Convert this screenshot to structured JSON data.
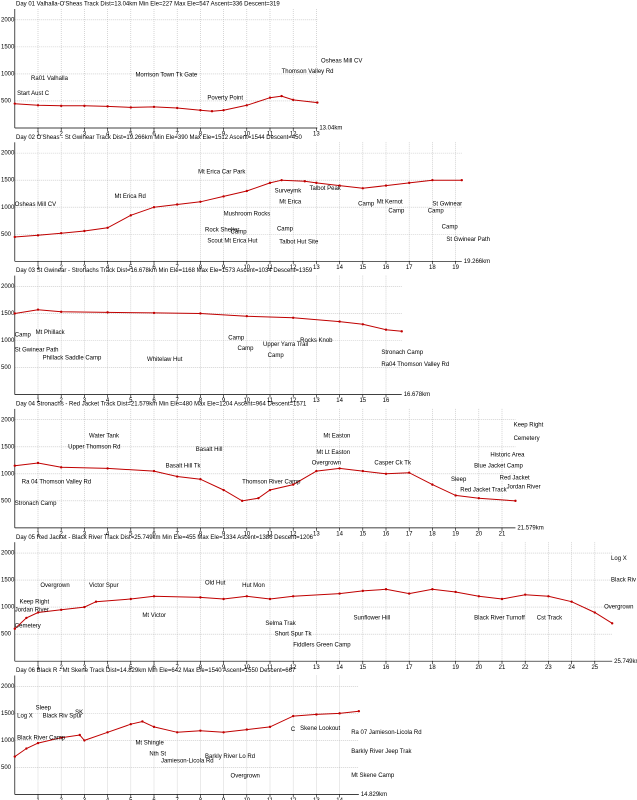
{
  "chart_data": [
    {
      "type": "line",
      "title": "Day 01 Valhalla-O'Sheas Track   Dist=13.04km   Min Ele=227   Max Ele=547   Ascent=336   Descent=319",
      "distance_label": "13.04km",
      "color": "#c00000",
      "grid": true,
      "xlim": [
        0,
        13.04
      ],
      "ylim": [
        0,
        2200
      ],
      "xticks": [
        1,
        2,
        3,
        4,
        5,
        6,
        7,
        8,
        9,
        10,
        11,
        12,
        13
      ],
      "yticks": [
        500,
        1000,
        1500,
        2000
      ],
      "x": [
        0,
        1,
        2,
        3,
        4,
        5,
        6,
        7,
        8,
        8.5,
        9,
        10,
        11,
        11.5,
        12,
        13.04
      ],
      "values": [
        450,
        420,
        410,
        410,
        400,
        380,
        390,
        370,
        330,
        310,
        330,
        420,
        560,
        590,
        520,
        470
      ],
      "annotations": [
        {
          "text": "Start Aust C",
          "x": 0.1,
          "y": 640
        },
        {
          "text": "Ra01 Valhalla",
          "x": 0.7,
          "y": 920
        },
        {
          "text": "Morrison Town Tk Gate",
          "x": 5.2,
          "y": 980
        },
        {
          "text": "Poverty Point",
          "x": 8.3,
          "y": 560
        },
        {
          "text": "Thomson Valley Rd",
          "x": 11.5,
          "y": 1050
        },
        {
          "text": "Osheas Mill CV",
          "x": 13.2,
          "y": 1240
        }
      ]
    },
    {
      "type": "line",
      "title": "Day 02 O'Sheas - St Gwinear Track   Dist=19.266km   Min Ele=390   Max Ele=1512   Ascent=1544   Descent=450",
      "distance_label": "19.266km",
      "color": "#c00000",
      "grid": true,
      "xlim": [
        0,
        19.266
      ],
      "ylim": [
        0,
        2200
      ],
      "xticks": [
        1,
        2,
        3,
        4,
        5,
        6,
        7,
        8,
        9,
        10,
        11,
        12,
        13,
        14,
        15,
        16,
        17,
        18,
        19
      ],
      "yticks": [
        500,
        1000,
        1500,
        2000
      ],
      "x": [
        0,
        1,
        2,
        3,
        4,
        5,
        6,
        7,
        8,
        9,
        10,
        11,
        11.5,
        12.5,
        13,
        14,
        15,
        16,
        17,
        18,
        19.266
      ],
      "values": [
        450,
        480,
        520,
        560,
        620,
        850,
        1000,
        1050,
        1100,
        1200,
        1300,
        1450,
        1500,
        1480,
        1450,
        1400,
        1350,
        1400,
        1450,
        1500,
        1500
      ],
      "annotations": [
        {
          "text": "Osheas Mill CV",
          "x": 0,
          "y": 1050
        },
        {
          "text": "Mt Erica Rd",
          "x": 4.3,
          "y": 1200
        },
        {
          "text": "Mt Erica Car Park",
          "x": 7.9,
          "y": 1650
        },
        {
          "text": "Mushroom Rocks",
          "x": 9.0,
          "y": 880
        },
        {
          "text": "Rock Shelter",
          "x": 8.2,
          "y": 580
        },
        {
          "text": "Camp",
          "x": 9.3,
          "y": 540
        },
        {
          "text": "Scout Mt Erica Hut",
          "x": 8.3,
          "y": 380
        },
        {
          "text": "Surveymk",
          "x": 11.2,
          "y": 1300
        },
        {
          "text": "Mt Erica",
          "x": 11.4,
          "y": 1100
        },
        {
          "text": "Camp",
          "x": 11.3,
          "y": 600
        },
        {
          "text": "Talbot Hut Site",
          "x": 11.4,
          "y": 360
        },
        {
          "text": "Talbot Peak",
          "x": 12.7,
          "y": 1350
        },
        {
          "text": "Camp",
          "x": 14.8,
          "y": 1060
        },
        {
          "text": "Mt Kernot",
          "x": 15.6,
          "y": 1100
        },
        {
          "text": "Camp",
          "x": 16.1,
          "y": 930
        },
        {
          "text": "Camp",
          "x": 17.8,
          "y": 930
        },
        {
          "text": "St Gwinear",
          "x": 18,
          "y": 1060
        },
        {
          "text": "Camp",
          "x": 18.4,
          "y": 640
        },
        {
          "text": "St Gwinear Path",
          "x": 18.6,
          "y": 400
        }
      ]
    },
    {
      "type": "line",
      "title": "Day 03 St Gwinear - Stronachs Track   Dist=16.678km   Min Ele=1168   Max Ele=1573   Ascent=1034   Descent=1359",
      "distance_label": "16.678km",
      "color": "#c00000",
      "grid": true,
      "xlim": [
        0,
        16.678
      ],
      "ylim": [
        0,
        2200
      ],
      "xticks": [
        1,
        2,
        3,
        4,
        5,
        6,
        7,
        8,
        9,
        10,
        11,
        12,
        13,
        14,
        15,
        16
      ],
      "yticks": [
        500,
        1000,
        1500,
        2000
      ],
      "x": [
        0,
        1,
        2,
        4,
        6,
        8,
        10,
        12,
        14,
        15,
        16,
        16.678
      ],
      "values": [
        1500,
        1570,
        1530,
        1520,
        1510,
        1500,
        1450,
        1420,
        1350,
        1300,
        1200,
        1170
      ],
      "annotations": [
        {
          "text": "Camp",
          "x": 0,
          "y": 1100
        },
        {
          "text": "Mt Phillack",
          "x": 0.9,
          "y": 1150
        },
        {
          "text": "St Gwinear Path",
          "x": 0,
          "y": 830
        },
        {
          "text": "Phillack Saddle Camp",
          "x": 1.2,
          "y": 680
        },
        {
          "text": "Whitelaw Hut",
          "x": 5.7,
          "y": 650
        },
        {
          "text": "Camp",
          "x": 9.2,
          "y": 1050
        },
        {
          "text": "Camp",
          "x": 9.6,
          "y": 850
        },
        {
          "text": "Upper Yarra Trail",
          "x": 10.7,
          "y": 930
        },
        {
          "text": "Camp",
          "x": 10.9,
          "y": 720
        },
        {
          "text": "Rocks Knob",
          "x": 12.3,
          "y": 1000
        },
        {
          "text": "Stronach Camp",
          "x": 15.8,
          "y": 780
        },
        {
          "text": "Ra04 Thomson Valley Rd",
          "x": 15.8,
          "y": 560
        }
      ]
    },
    {
      "type": "line",
      "title": "Day 04 Stronachs - Red Jacket Track   Dist=21.579km   Min Ele=480   Max Ele=1204   Ascent=964   Descent=1571",
      "distance_label": "21.579km",
      "color": "#c00000",
      "grid": true,
      "xlim": [
        0,
        21.579
      ],
      "ylim": [
        0,
        2200
      ],
      "xticks": [
        1,
        2,
        3,
        4,
        5,
        6,
        7,
        8,
        9,
        10,
        11,
        12,
        13,
        14,
        15,
        16,
        17,
        18,
        19,
        20,
        21
      ],
      "yticks": [
        500,
        1000,
        1500,
        2000
      ],
      "x": [
        0,
        1,
        2,
        4,
        6,
        7,
        8,
        9,
        9.8,
        10.5,
        11,
        12,
        13,
        14,
        15,
        16,
        17,
        18,
        19,
        20,
        21.579
      ],
      "values": [
        1150,
        1200,
        1120,
        1100,
        1050,
        950,
        900,
        700,
        500,
        550,
        700,
        800,
        1050,
        1100,
        1050,
        1000,
        1020,
        800,
        600,
        550,
        500
      ],
      "annotations": [
        {
          "text": "Ra 04 Thomson Valley Rd",
          "x": 0.3,
          "y": 850
        },
        {
          "text": "Stronach Camp",
          "x": 0,
          "y": 450
        },
        {
          "text": "Upper Thomson Rd",
          "x": 2.3,
          "y": 1500
        },
        {
          "text": "Water Tank",
          "x": 3.2,
          "y": 1700
        },
        {
          "text": "Basalt Hill Tk",
          "x": 6.5,
          "y": 1150
        },
        {
          "text": "Basalt Hill",
          "x": 7.8,
          "y": 1450
        },
        {
          "text": "Thomson River Camp",
          "x": 9.8,
          "y": 850
        },
        {
          "text": "Mt Easton",
          "x": 13.3,
          "y": 1700
        },
        {
          "text": "Mt Lt Easton",
          "x": 13,
          "y": 1400
        },
        {
          "text": "Overgrown",
          "x": 12.8,
          "y": 1200
        },
        {
          "text": "Casper Ck Tk",
          "x": 15.5,
          "y": 1200
        },
        {
          "text": "Sleep",
          "x": 18.8,
          "y": 900
        },
        {
          "text": "Blue Jacket Camp",
          "x": 19.8,
          "y": 1150
        },
        {
          "text": "Historic Area",
          "x": 20.5,
          "y": 1350
        },
        {
          "text": "Keep Right",
          "x": 21.5,
          "y": 1900
        },
        {
          "text": "Cemetery",
          "x": 21.5,
          "y": 1650
        },
        {
          "text": "Red Jacket Track",
          "x": 19.2,
          "y": 700
        },
        {
          "text": "Red Jacket",
          "x": 20.9,
          "y": 920
        },
        {
          "text": "Jordan River",
          "x": 21.2,
          "y": 760
        }
      ]
    },
    {
      "type": "line",
      "title": "Day 05 Red Jacket - Black River Track   Dist=25.749km   Min Ele=455   Max Ele=1334   Ascent=1386   Descent=1206",
      "distance_label": "25.749km",
      "color": "#c00000",
      "grid": true,
      "xlim": [
        0,
        25.749
      ],
      "ylim": [
        0,
        2200
      ],
      "xticks": [
        1,
        2,
        3,
        4,
        5,
        6,
        7,
        8,
        9,
        10,
        11,
        12,
        13,
        14,
        15,
        16,
        17,
        18,
        19,
        20,
        21,
        22,
        23,
        24,
        25
      ],
      "yticks": [
        500,
        1000,
        1500,
        2000
      ],
      "x": [
        0,
        0.5,
        1,
        2,
        3,
        3.5,
        5,
        6,
        8,
        9,
        10,
        11,
        12,
        14,
        15,
        16,
        17,
        18,
        19,
        20,
        21,
        22,
        23,
        24,
        25,
        25.749
      ],
      "values": [
        600,
        800,
        900,
        950,
        1000,
        1100,
        1150,
        1200,
        1180,
        1150,
        1200,
        1150,
        1200,
        1250,
        1300,
        1330,
        1250,
        1330,
        1280,
        1200,
        1150,
        1230,
        1200,
        1100,
        900,
        700
      ],
      "annotations": [
        {
          "text": "Keep Right",
          "x": 0.2,
          "y": 1100
        },
        {
          "text": "Jordan River",
          "x": 0,
          "y": 950
        },
        {
          "text": "Cemetery",
          "x": 0,
          "y": 650
        },
        {
          "text": "Overgrown",
          "x": 1.1,
          "y": 1400
        },
        {
          "text": "Victor Spur",
          "x": 3.2,
          "y": 1400
        },
        {
          "text": "Mt Victor",
          "x": 5.5,
          "y": 850
        },
        {
          "text": "Old Hut",
          "x": 8.2,
          "y": 1450
        },
        {
          "text": "Hut Mon",
          "x": 9.8,
          "y": 1400
        },
        {
          "text": "Selma Trak",
          "x": 10.8,
          "y": 700
        },
        {
          "text": "Short Spur Tk",
          "x": 11.2,
          "y": 500
        },
        {
          "text": "Fiddlers Green Camp",
          "x": 12,
          "y": 300
        },
        {
          "text": "Sunflower Hill",
          "x": 14.6,
          "y": 800
        },
        {
          "text": "Black River Turnoff",
          "x": 19.8,
          "y": 800
        },
        {
          "text": "Cst Track",
          "x": 22.5,
          "y": 800
        },
        {
          "text": "Log X",
          "x": 25.7,
          "y": 1900
        },
        {
          "text": "Black Riv Camp",
          "x": 25.7,
          "y": 1500
        },
        {
          "text": "Overgrown",
          "x": 25.4,
          "y": 1000
        }
      ]
    },
    {
      "type": "line",
      "title": "Day 06 Black R - Mt Skene Track   Dist=14.829km   Min Ele=642   Max Ele=1540   Ascent=1550   Descent=667",
      "distance_label": "14.829km",
      "color": "#c00000",
      "grid": true,
      "xlim": [
        0,
        14.829
      ],
      "ylim": [
        0,
        2200
      ],
      "xticks": [
        1,
        2,
        3,
        4,
        5,
        6,
        7,
        8,
        9,
        10,
        11,
        12,
        13,
        14
      ],
      "yticks": [
        500,
        1000,
        1500,
        2000
      ],
      "x": [
        0,
        0.5,
        1,
        2,
        2.8,
        3,
        4,
        5,
        5.5,
        6,
        7,
        8,
        9,
        10,
        11,
        12,
        13,
        14,
        14.829
      ],
      "values": [
        700,
        850,
        950,
        1050,
        1100,
        1000,
        1150,
        1300,
        1350,
        1250,
        1150,
        1180,
        1150,
        1200,
        1250,
        1450,
        1480,
        1500,
        1540
      ],
      "annotations": [
        {
          "text": "Log X",
          "x": 0.1,
          "y": 1450
        },
        {
          "text": "Sleep",
          "x": 0.9,
          "y": 1600
        },
        {
          "text": "Black Riv Spur",
          "x": 1.2,
          "y": 1450
        },
        {
          "text": "SK",
          "x": 2.6,
          "y": 1520
        },
        {
          "text": "Black River Camp",
          "x": 0.1,
          "y": 1050
        },
        {
          "text": "Mt Shingle",
          "x": 5.2,
          "y": 950
        },
        {
          "text": "Nth St",
          "x": 5.8,
          "y": 750
        },
        {
          "text": "Jamieson-Licola Rd",
          "x": 6.3,
          "y": 620
        },
        {
          "text": "Barkly River Lo Rd",
          "x": 8.2,
          "y": 700
        },
        {
          "text": "Overgrown",
          "x": 9.3,
          "y": 340
        },
        {
          "text": "C",
          "x": 11.9,
          "y": 1200
        },
        {
          "text": "Skene Lookout",
          "x": 12.3,
          "y": 1220
        },
        {
          "text": "Ra 07 Jamieson-Licola Rd",
          "x": 14.5,
          "y": 1150
        },
        {
          "text": "Barkly River Jeep Trak",
          "x": 14.5,
          "y": 800
        },
        {
          "text": "Mt Skene Camp",
          "x": 14.5,
          "y": 350
        }
      ]
    }
  ]
}
